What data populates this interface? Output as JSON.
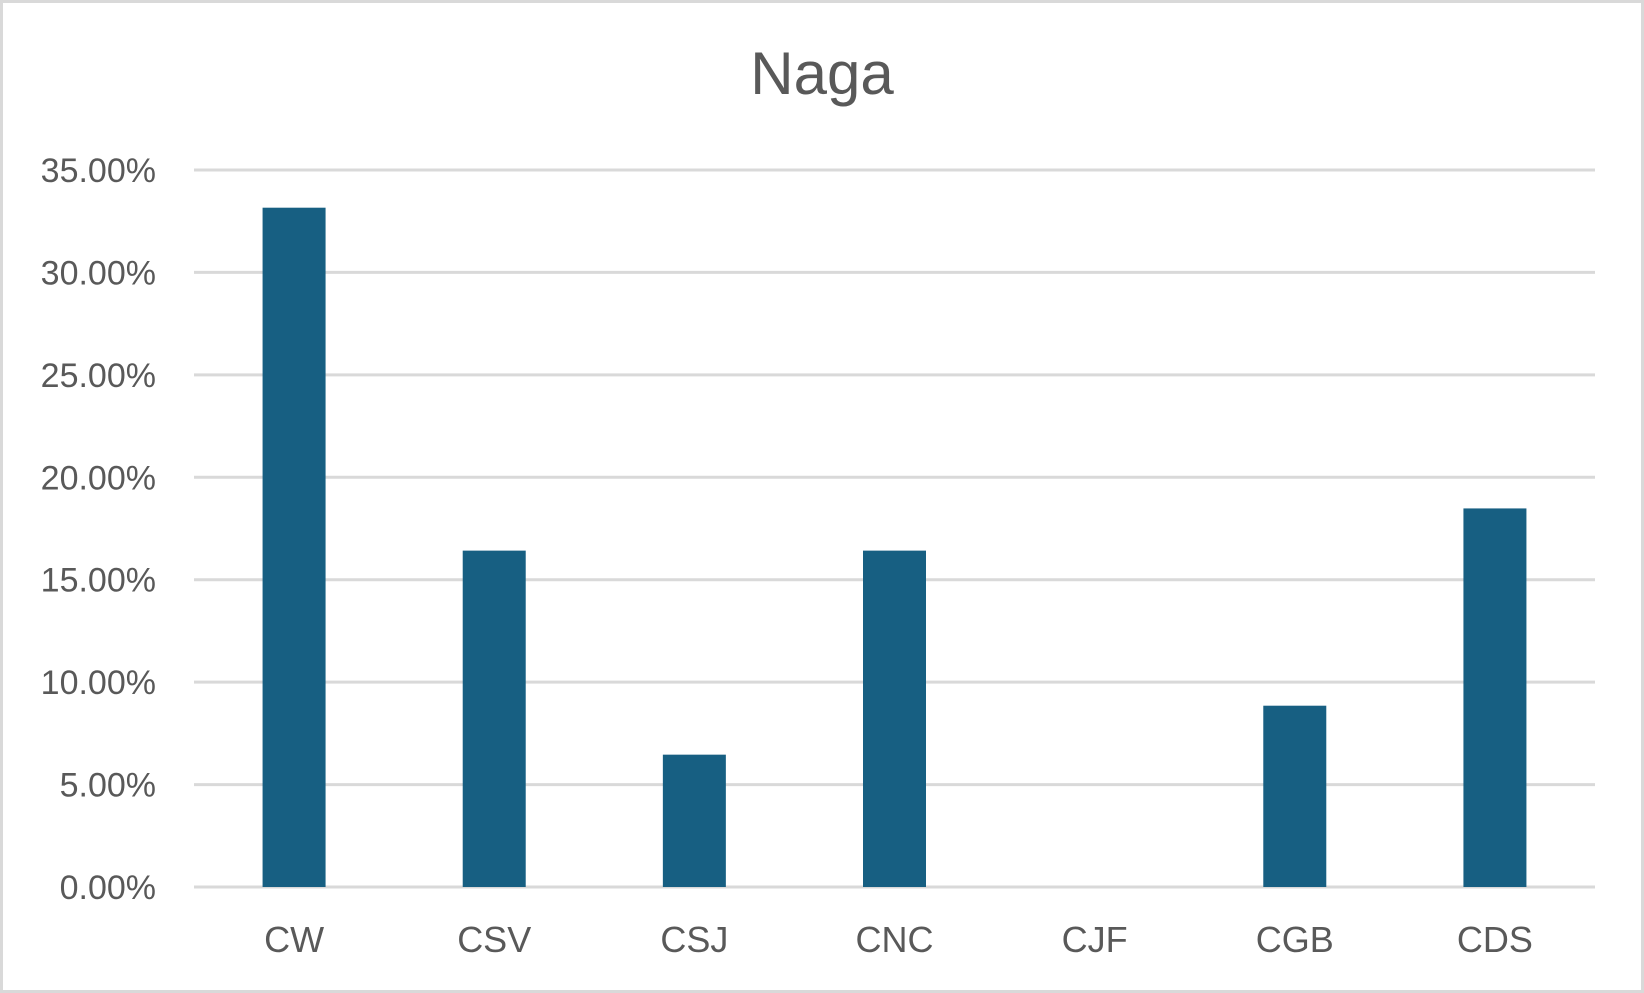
{
  "chart_data": {
    "type": "bar",
    "title": "Naga",
    "xlabel": "",
    "ylabel": "",
    "categories": [
      "CW",
      "CSV",
      "CSJ",
      "CNC",
      "CJF",
      "CGB",
      "CDS"
    ],
    "values": [
      0.3316,
      0.1642,
      0.0646,
      0.1642,
      0.0,
      0.0885,
      0.1848
    ],
    "ylim": [
      0,
      0.35
    ],
    "yticks": [
      0,
      0.05,
      0.1,
      0.15,
      0.2,
      0.25,
      0.3,
      0.35
    ],
    "ytick_labels": [
      "0.00%",
      "5.00%",
      "10.00%",
      "15.00%",
      "20.00%",
      "25.00%",
      "30.00%",
      "35.00%"
    ],
    "grid": true,
    "legend": "none",
    "colors": {
      "bar": "#175f82",
      "grid": "#d9d9d9",
      "text": "#595959"
    }
  }
}
